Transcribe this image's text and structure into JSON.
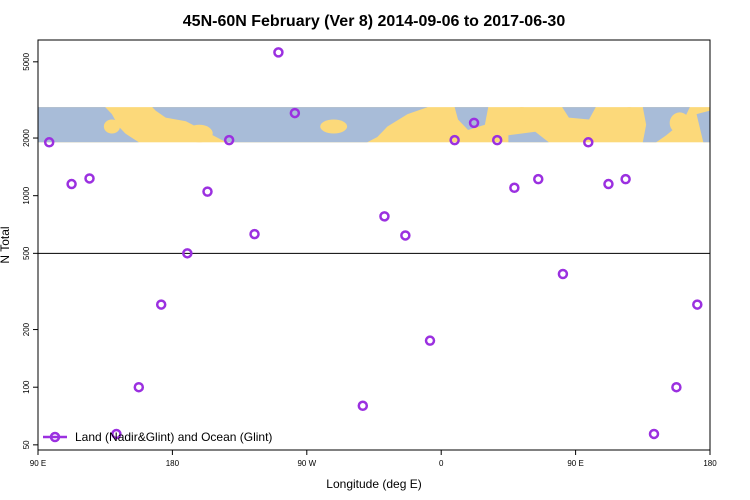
{
  "chart_data": {
    "type": "scatter",
    "title": "45N-60N February (Ver 8)   2014-09-06 to 2017-06-30",
    "xlabel": "Longitude (deg E)",
    "ylabel": "N Total",
    "x_scale": "linear",
    "y_scale": "log",
    "xlim": [
      90,
      540
    ],
    "ylim": [
      47,
      6500
    ],
    "x_ticks": [
      {
        "value": 90,
        "label": "90 E"
      },
      {
        "value": 180,
        "label": "180"
      },
      {
        "value": 270,
        "label": "90 W"
      },
      {
        "value": 360,
        "label": "0"
      },
      {
        "value": 450,
        "label": "90 E"
      },
      {
        "value": 540,
        "label": "180"
      }
    ],
    "y_ticks": [
      {
        "value": 50,
        "label": "50"
      },
      {
        "value": 100,
        "label": "100"
      },
      {
        "value": 200,
        "label": "200"
      },
      {
        "value": 500,
        "label": "500"
      },
      {
        "value": 1000,
        "label": "1000"
      },
      {
        "value": 2000,
        "label": "2000"
      },
      {
        "value": 5000,
        "label": "5000"
      }
    ],
    "reference_line_y": 500,
    "map_band": {
      "y_min": 1900,
      "y_max": 2900,
      "ocean_color": "#a8bcd8",
      "land_color": "#fcd97a"
    },
    "series": [
      {
        "name": "Land (Nadir&Glint) and Ocean (Glint)",
        "color": "#9b30e0",
        "x": [
          97.5,
          112.5,
          124.5,
          142.5,
          157.5,
          172.5,
          190.0,
          203.5,
          218.0,
          235.0,
          251.0,
          262.0,
          307.5,
          322.0,
          336.0,
          352.5,
          369.0,
          382.0,
          397.5,
          409.0,
          425.0,
          441.5,
          458.5,
          472.0,
          483.5,
          502.5,
          517.5,
          531.5
        ],
        "y": [
          1900,
          1150,
          1230,
          57,
          100,
          270,
          500,
          1050,
          1950,
          630,
          5600,
          2700,
          80,
          780,
          620,
          175,
          1950,
          2400,
          1950,
          1100,
          1220,
          390,
          1900,
          1150,
          1220,
          57,
          100,
          270
        ]
      }
    ],
    "legend": {
      "position": "bottom-left",
      "label": "Land (Nadir&Glint) and Ocean (Glint)"
    },
    "grid": false
  }
}
